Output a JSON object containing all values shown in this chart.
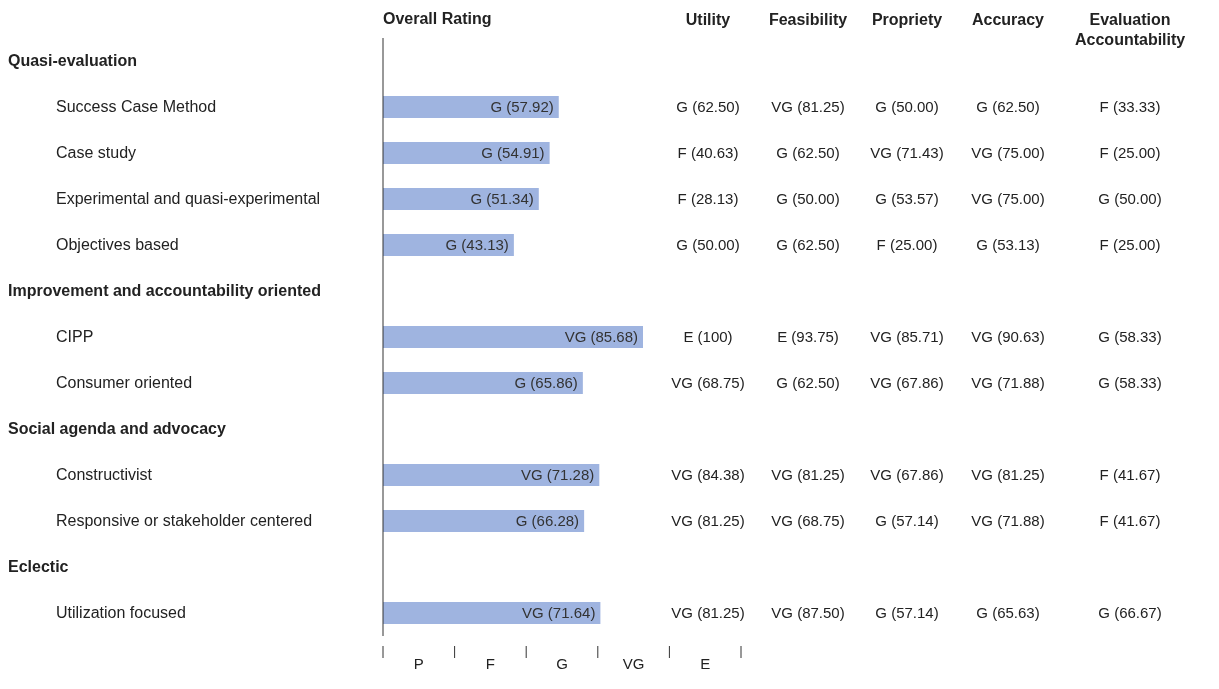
{
  "chart_data": {
    "type": "bar",
    "orientation": "horizontal",
    "title": "Overall Rating",
    "categories": [
      null,
      "Success Case Method",
      "Case study",
      "Experimental and quasi-experimental",
      "Objectives based",
      null,
      "CIPP",
      "Consumer oriented",
      null,
      "Constructivist",
      "Responsive or stakeholder centered",
      null,
      "Utilization focused"
    ],
    "values": [
      null,
      57.92,
      54.91,
      51.34,
      43.13,
      null,
      85.68,
      65.86,
      null,
      71.28,
      66.28,
      null,
      71.64
    ],
    "value_labels": [
      null,
      "G (57.92)",
      "G (54.91)",
      "G (51.34)",
      "G (43.13)",
      null,
      "VG (85.68)",
      "G (65.86)",
      null,
      "VG (71.28)",
      "G (66.28)",
      null,
      "VG (71.64)"
    ],
    "color": "#9fb4e0",
    "annotations": [
      "Utility",
      "Feasibility",
      "Propriety",
      "Accuracy",
      "Evaluation Accountability",
      "G (62.50)",
      "VG (81.25)",
      "G (50.00)",
      "G (62.50)",
      "F (33.33)",
      "F (40.63)",
      "G (62.50)",
      "VG (71.43)",
      "VG (75.00)",
      "F (25.00)",
      "F (28.13)",
      "G (50.00)",
      "G (53.57)",
      "VG (75.00)",
      "G (50.00)",
      "G (50.00)",
      "G (62.50)",
      "F (25.00)",
      "G (53.13)",
      "F (25.00)",
      "E (100)",
      "E (93.75)",
      "VG (85.71)",
      "VG (90.63)",
      "G (58.33)",
      "VG (68.75)",
      "G (62.50)",
      "VG (67.86)",
      "VG (71.88)",
      "G (58.33)",
      "VG (84.38)",
      "VG (81.25)",
      "VG (67.86)",
      "VG (81.25)",
      "F (41.67)",
      "VG (81.25)",
      "VG (68.75)",
      "G (57.14)",
      "VG (71.88)",
      "F (41.67)",
      "VG (81.25)",
      "VG (87.50)",
      "G (57.14)",
      "G (65.63)",
      "G (66.67)",
      "Quasi-evaluation",
      "Improvement and accountability oriented",
      "Social agenda and advocacy",
      "Eclectic",
      "P",
      "F",
      "G",
      "VG",
      "E"
    ],
    "grid": false
  }
}
